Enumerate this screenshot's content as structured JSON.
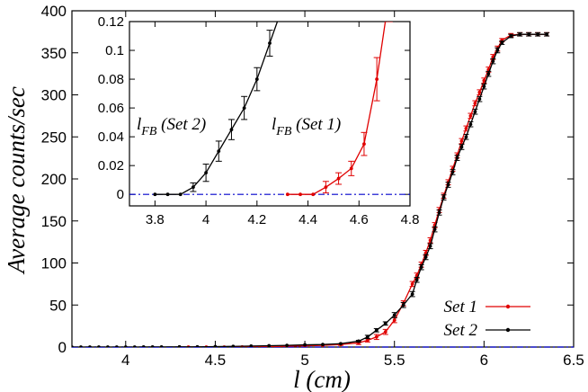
{
  "chart_data": [
    {
      "type": "line",
      "xlabel": "l (cm)",
      "ylabel": "Average counts/sec",
      "xlim": [
        3.7,
        6.5
      ],
      "ylim": [
        0,
        400
      ],
      "x_ticks": [
        4,
        4.5,
        5,
        5.5,
        6,
        6.5
      ],
      "x_tick_labels": [
        "4",
        "4.5",
        "5",
        "5.5",
        "6",
        "6.5"
      ],
      "y_ticks": [
        0,
        50,
        100,
        150,
        200,
        250,
        300,
        350,
        400
      ],
      "y_tick_labels": [
        "0",
        "50",
        "100",
        "150",
        "200",
        "250",
        "300",
        "350",
        "400"
      ],
      "grid": false,
      "legend": "bottom-right",
      "reference_line": {
        "y": 0,
        "style": "dash-dot",
        "color": "#0000cc"
      },
      "series": [
        {
          "name": "Set 1",
          "color": "#e00000",
          "x": [
            4.3,
            4.35,
            4.4,
            4.45,
            4.5,
            4.55,
            4.6,
            4.65,
            4.7,
            4.8,
            4.9,
            5.0,
            5.1,
            5.2,
            5.3,
            5.35,
            5.4,
            5.45,
            5.5,
            5.55,
            5.6,
            5.625,
            5.65,
            5.675,
            5.7,
            5.725,
            5.75,
            5.775,
            5.8,
            5.825,
            5.85,
            5.875,
            5.9,
            5.925,
            5.95,
            5.975,
            6.0,
            6.025,
            6.05,
            6.075,
            6.1,
            6.15,
            6.2,
            6.25,
            6.3,
            6.35
          ],
          "values": [
            0,
            0,
            0,
            0,
            0.01,
            0.02,
            0.04,
            0.09,
            0.2,
            0.5,
            1,
            1.5,
            2,
            3,
            5,
            8,
            12,
            18,
            32,
            52,
            75,
            85,
            98,
            112,
            127,
            145,
            163,
            180,
            196,
            212,
            228,
            245,
            260,
            275,
            290,
            303,
            317,
            330,
            345,
            355,
            365,
            371,
            372,
            372,
            372,
            372
          ],
          "error": [
            0,
            0,
            0,
            0,
            0.003,
            0.004,
            0.005,
            0.01,
            0.02,
            0.05,
            0.1,
            0.2,
            0.5,
            1,
            2,
            2,
            3,
            3,
            3,
            3,
            3,
            3,
            3,
            3,
            3,
            3,
            3,
            3,
            3,
            3,
            3,
            3,
            3,
            3,
            3,
            3,
            3,
            3,
            3,
            3,
            2,
            2,
            2,
            2,
            2,
            2
          ]
        },
        {
          "name": "Set 2",
          "color": "#000000",
          "x": [
            3.7,
            3.75,
            3.8,
            3.85,
            3.9,
            3.95,
            4.0,
            4.05,
            4.1,
            4.15,
            4.2,
            4.3,
            4.4,
            4.5,
            4.6,
            4.7,
            4.8,
            4.9,
            5.0,
            5.1,
            5.2,
            5.3,
            5.35,
            5.4,
            5.45,
            5.5,
            5.55,
            5.6,
            5.625,
            5.65,
            5.675,
            5.7,
            5.725,
            5.75,
            5.775,
            5.8,
            5.825,
            5.85,
            5.875,
            5.9,
            5.925,
            5.95,
            5.975,
            6.0,
            6.025,
            6.05,
            6.075,
            6.1,
            6.15,
            6.2,
            6.25,
            6.3,
            6.35
          ],
          "values": [
            0,
            0,
            0,
            0,
            0,
            0.005,
            0.015,
            0.035,
            0.055,
            0.075,
            0.1,
            0.2,
            0.3,
            0.5,
            0.8,
            1.2,
            1.6,
            2,
            2.6,
            3,
            4,
            7,
            12,
            20,
            28,
            38,
            50,
            63,
            80,
            95,
            107,
            120,
            140,
            160,
            178,
            193,
            208,
            225,
            238,
            250,
            265,
            280,
            295,
            310,
            325,
            340,
            353,
            362,
            370,
            372,
            372,
            372,
            372
          ],
          "error": [
            0,
            0,
            0,
            0,
            0,
            0.004,
            0.006,
            0.007,
            0.008,
            0.008,
            0.009,
            0.02,
            0.05,
            0.1,
            0.1,
            0.2,
            0.2,
            0.3,
            0.4,
            0.5,
            0.5,
            1,
            2,
            2,
            2,
            3,
            3,
            3,
            3,
            3,
            3,
            3,
            3,
            3,
            3,
            3,
            3,
            3,
            3,
            3,
            3,
            3,
            3,
            3,
            3,
            3,
            3,
            2,
            2,
            2,
            2,
            2,
            2
          ]
        }
      ],
      "annotations": []
    },
    {
      "type": "line",
      "xlabel": "",
      "ylabel": "",
      "xlim": [
        3.7,
        4.8
      ],
      "ylim": [
        -0.008,
        0.12
      ],
      "x_ticks": [
        3.8,
        4.0,
        4.2,
        4.4,
        4.6,
        4.8
      ],
      "x_tick_labels": [
        "3.8",
        "4",
        "4.2",
        "4.4",
        "4.6",
        "4.8"
      ],
      "y_ticks": [
        0,
        0.02,
        0.04,
        0.06,
        0.08,
        0.1,
        0.12
      ],
      "y_tick_labels": [
        "0",
        "0.02",
        "0.04",
        "0.06",
        "0.08",
        "0.1",
        "0.12"
      ],
      "grid": false,
      "reference_line": {
        "y": 0,
        "style": "dash-dot",
        "color": "#0000cc"
      },
      "series": [
        {
          "name": "Set 2",
          "color": "#000000",
          "x": [
            3.8,
            3.85,
            3.9,
            3.95,
            4.0,
            4.05,
            4.1,
            4.15,
            4.2,
            4.25,
            4.3
          ],
          "values": [
            0,
            0,
            0,
            0.005,
            0.015,
            0.03,
            0.045,
            0.06,
            0.08,
            0.105,
            0.13
          ],
          "error": [
            0,
            0,
            0,
            0.003,
            0.006,
            0.007,
            0.007,
            0.008,
            0.008,
            0.009,
            0.01
          ]
        },
        {
          "name": "Set 1",
          "color": "#e00000",
          "x": [
            4.32,
            4.37,
            4.42,
            4.47,
            4.52,
            4.57,
            4.62,
            4.67,
            4.72
          ],
          "values": [
            0,
            0,
            0,
            0.005,
            0.011,
            0.018,
            0.035,
            0.08,
            0.14
          ],
          "error": [
            0,
            0,
            0,
            0.004,
            0.004,
            0.005,
            0.008,
            0.015,
            0.02
          ]
        }
      ],
      "annotations": [
        {
          "text": "l",
          "sub": "FB",
          "after": " (Set 2)"
        },
        {
          "text": "l",
          "sub": "FB",
          "after": " (Set 1)"
        }
      ]
    }
  ]
}
